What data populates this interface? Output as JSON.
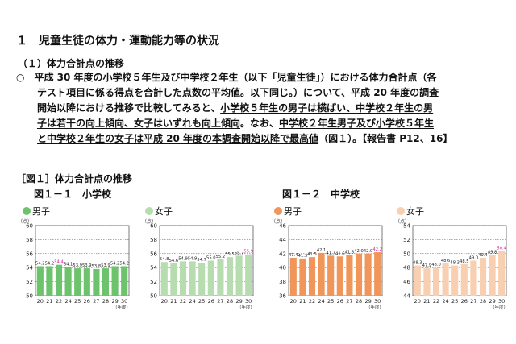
{
  "section_title": "１　児童生徒の体力・運動能力等の状況",
  "subsection_title": "（１）体力合計点の推移",
  "paragraph": {
    "line1": "○　平成 30 年度の小学校５年生及び中学校２年生（以下「児童生徒」）における体力合計点（各",
    "line2": "テスト項目に係る得点を合計した点数の平均値。以下同じ。）について、平成 20 年度の調査",
    "line3_pre": "開始以降における推移で比較してみると、",
    "line3_u": "小学校５年生の男子は横ばい、中学校２年生の男",
    "line4_u": "子は若干の向上傾向、女子はいずれも向上傾向",
    "line4_post": "。なお、",
    "line4_u2": "中学校２年生男子及び小学校５年生",
    "line5_u": "と中学校２年生の女子は平成 20 年度の本調査開始以降で最高値",
    "line5_post": "（図１）。【報告書 P12、16】"
  },
  "figure_title": "［図１］体力合計点の推移",
  "subfigures": {
    "elementary": "図１－１　小学校",
    "junior_high": "図１－２　中学校"
  },
  "chart_data": [
    {
      "type": "bar",
      "title": "",
      "legend": "男子",
      "color": "#6cc36c",
      "ylabel": "（点）",
      "xlabel": "（年度）",
      "ylim": [
        50,
        60
      ],
      "yticks": [
        50,
        52,
        54,
        56,
        58,
        60
      ],
      "categories": [
        "20",
        "21",
        "22",
        "24",
        "25",
        "26",
        "27",
        "28",
        "29",
        "30"
      ],
      "values": [
        54.2,
        54.2,
        54.4,
        54.1,
        53.9,
        53.9,
        53.8,
        53.9,
        54.2,
        54.2
      ],
      "value_labels": [
        "54.2",
        "54.2",
        "54.4",
        "54.1",
        "53.9",
        "53.9",
        "53.8",
        "53.9",
        "54.2",
        "54.2"
      ],
      "highlight_index": 2
    },
    {
      "type": "bar",
      "title": "",
      "legend": "女子",
      "color": "#b7dcb0",
      "ylabel": "（点）",
      "xlabel": "（年度）",
      "ylim": [
        50,
        60
      ],
      "yticks": [
        50,
        52,
        54,
        56,
        58,
        60
      ],
      "categories": [
        "20",
        "21",
        "22",
        "24",
        "25",
        "26",
        "27",
        "28",
        "29",
        "30"
      ],
      "values": [
        54.8,
        54.6,
        54.9,
        54.9,
        54.7,
        55.0,
        55.2,
        55.5,
        55.7,
        55.9
      ],
      "value_labels": [
        "54.8",
        "54.6",
        "54.9",
        "54.9",
        "54.7",
        "55.0",
        "55.2",
        "55.5",
        "55.7",
        "55.9"
      ],
      "highlight_index": 9
    },
    {
      "type": "bar",
      "title": "",
      "legend": "男子",
      "color": "#f0965a",
      "ylabel": "（点）",
      "xlabel": "（年度）",
      "ylim": [
        36,
        46
      ],
      "yticks": [
        36,
        38,
        40,
        42,
        44,
        46
      ],
      "categories": [
        "20",
        "21",
        "22",
        "24",
        "25",
        "26",
        "27",
        "28",
        "29",
        "30"
      ],
      "values": [
        41.4,
        41.3,
        41.5,
        42.1,
        41.7,
        41.6,
        41.8,
        42.0,
        42.0,
        42.2
      ],
      "value_labels": [
        "41.4",
        "41.3",
        "41.5",
        "42.1",
        "41.7",
        "41.6",
        "41.8",
        "42.0",
        "42.0",
        "42.2"
      ],
      "highlight_index": 9
    },
    {
      "type": "bar",
      "title": "",
      "legend": "女子",
      "color": "#f8cfb0",
      "ylabel": "（点）",
      "xlabel": "（年度）",
      "ylim": [
        44,
        54
      ],
      "yticks": [
        44,
        46,
        48,
        50,
        52,
        54
      ],
      "categories": [
        "20",
        "21",
        "22",
        "24",
        "25",
        "26",
        "27",
        "28",
        "29",
        "30"
      ],
      "values": [
        48.3,
        47.9,
        48.0,
        48.6,
        48.3,
        48.5,
        49.0,
        49.4,
        49.8,
        50.4
      ],
      "value_labels": [
        "48.3",
        "47.9",
        "48.0",
        "48.6",
        "48.3",
        "48.5",
        "49.0",
        "49.4",
        "49.8",
        "50.4"
      ],
      "highlight_index": 9
    }
  ]
}
